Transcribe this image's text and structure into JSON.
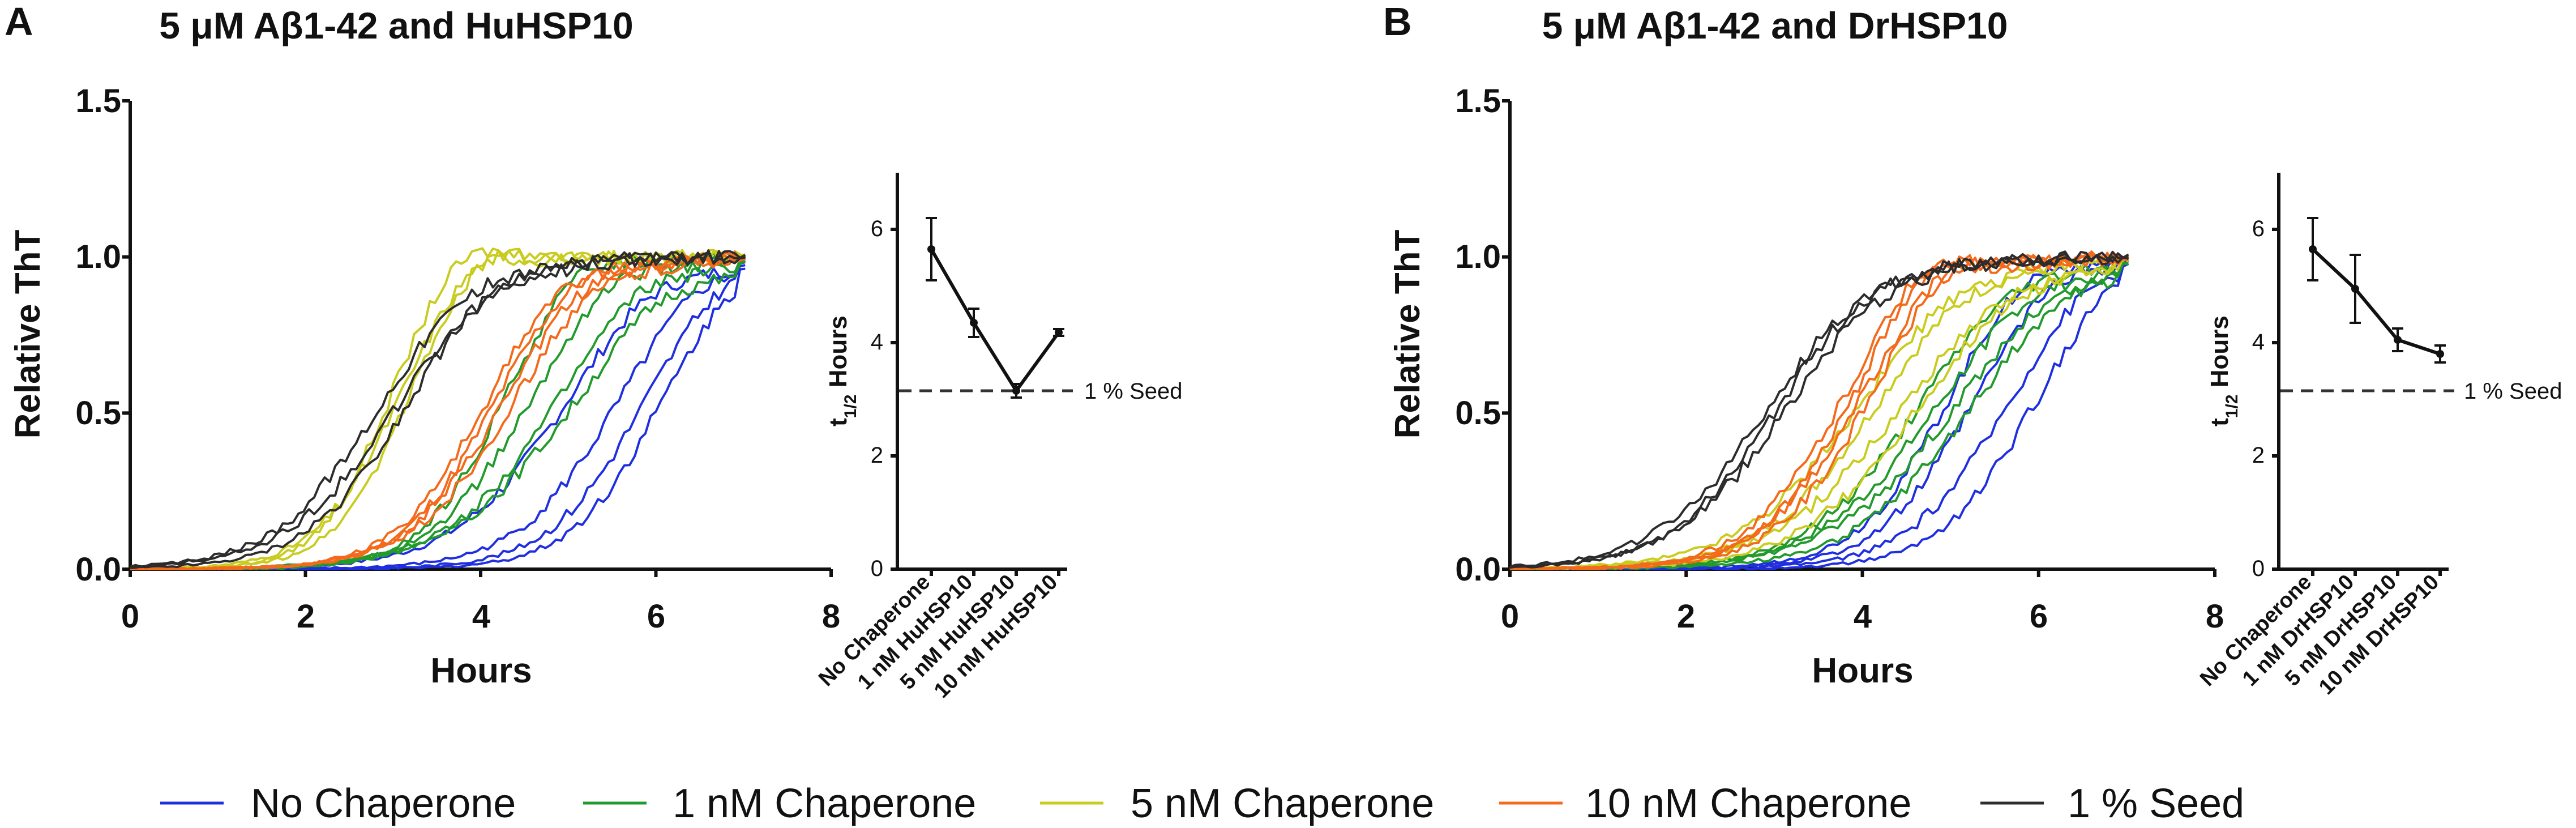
{
  "legend": [
    {
      "label": "No Chaperone",
      "color": "#1f2fe0"
    },
    {
      "label": "1 nM Chaperone",
      "color": "#229a2c"
    },
    {
      "label": "5 nM Chaperone",
      "color": "#c9cc1e"
    },
    {
      "label": "10 nM Chaperone",
      "color": "#f46a1c"
    },
    {
      "label": "1 % Seed",
      "color": "#2c2c2c"
    }
  ],
  "chart_data": [
    {
      "letter": "A",
      "type": "line",
      "title": "5 μM Aβ1-42 and HuHSP10",
      "xlabel": "Hours",
      "ylabel": "Relative ThT",
      "xlim": [
        0,
        8
      ],
      "ylim": [
        0,
        1.5
      ],
      "xticks": [
        "0",
        "2",
        "4",
        "6",
        "8"
      ],
      "yticks": [
        "0.0",
        "0.5",
        "1.0",
        "1.5"
      ],
      "groups": [
        {
          "name": "No Chaperone",
          "color": "#1f2fe0",
          "midpoints": [
            4.9,
            5.5,
            5.8,
            6.0
          ],
          "slopes": [
            1.6,
            1.8,
            1.9,
            2.0
          ],
          "overshoot": 1.04
        },
        {
          "name": "1 nM Chaperone",
          "color": "#229a2c",
          "midpoints": [
            4.2,
            4.5,
            4.8,
            5.0
          ],
          "slopes": [
            2.2,
            1.8,
            1.6,
            1.4
          ],
          "overshoot": 1.06
        },
        {
          "name": "5 nM Chaperone",
          "color": "#c9cc1e",
          "midpoints": [
            2.9,
            3.0,
            3.1
          ],
          "slopes": [
            2.6,
            2.2,
            2.4
          ],
          "overshoot": 1.08
        },
        {
          "name": "10 nM Chaperone",
          "color": "#f46a1c",
          "midpoints": [
            4.0,
            4.1,
            4.2,
            4.3
          ],
          "slopes": [
            2.0,
            2.0,
            1.9,
            1.8
          ],
          "overshoot": 1.03
        },
        {
          "name": "1 % Seed",
          "color": "#2c2c2c",
          "midpoints": [
            2.8,
            3.0,
            3.1
          ],
          "slopes": [
            1.7,
            1.6,
            1.8
          ],
          "overshoot": 1.02
        }
      ],
      "inset": {
        "type": "line",
        "ylabel": "t1/2 Hours",
        "ylim": [
          0,
          7
        ],
        "yticks": [
          "0",
          "2",
          "4",
          "6"
        ],
        "categories": [
          "No Chaperone",
          "1 nM HuHSP10",
          "5 nM HuHSP10",
          "10 nM HuHSP10"
        ],
        "values": [
          5.65,
          4.35,
          3.15,
          4.18
        ],
        "errors": [
          0.55,
          0.25,
          0.12,
          0.06
        ],
        "reference": {
          "label": "1 % Seed",
          "value": 3.15
        }
      }
    },
    {
      "letter": "B",
      "type": "line",
      "title": "5 μM Aβ1-42 and DrHSP10",
      "xlabel": "Hours",
      "ylabel": "Relative ThT",
      "xlim": [
        0,
        8
      ],
      "ylim": [
        0,
        1.5
      ],
      "xticks": [
        "0",
        "2",
        "4",
        "6",
        "8"
      ],
      "yticks": [
        "0.0",
        "0.5",
        "1.0",
        "1.5"
      ],
      "groups": [
        {
          "name": "No Chaperone",
          "color": "#1f2fe0",
          "midpoints": [
            4.9,
            5.2,
            5.6,
            5.9
          ],
          "slopes": [
            2.0,
            1.9,
            1.8,
            1.9
          ],
          "overshoot": 1.05
        },
        {
          "name": "1 nM Chaperone",
          "color": "#229a2c",
          "midpoints": [
            4.6,
            4.8,
            5.0,
            5.2
          ],
          "slopes": [
            1.6,
            1.5,
            1.4,
            1.5
          ],
          "overshoot": 1.03
        },
        {
          "name": "5 nM Chaperone",
          "color": "#c9cc1e",
          "midpoints": [
            3.9,
            4.1,
            4.4,
            4.6
          ],
          "slopes": [
            1.5,
            1.6,
            1.4,
            1.5
          ],
          "overshoot": 1.02
        },
        {
          "name": "10 nM Chaperone",
          "color": "#f46a1c",
          "midpoints": [
            3.7,
            3.8,
            3.9,
            4.0
          ],
          "slopes": [
            1.9,
            2.0,
            1.8,
            1.9
          ],
          "overshoot": 1.09
        },
        {
          "name": "1 % Seed",
          "color": "#2c2c2c",
          "midpoints": [
            2.9,
            3.0,
            3.1
          ],
          "slopes": [
            1.6,
            1.7,
            1.6
          ],
          "overshoot": 1.01
        }
      ],
      "inset": {
        "type": "line",
        "ylabel": "t1/2 Hours",
        "ylim": [
          0,
          7
        ],
        "yticks": [
          "0",
          "2",
          "4",
          "6"
        ],
        "categories": [
          "No Chaperone",
          "1 nM DrHSP10",
          "5 nM DrHSP10",
          "10 nM DrHSP10"
        ],
        "values": [
          5.65,
          4.95,
          4.05,
          3.8
        ],
        "errors": [
          0.55,
          0.6,
          0.2,
          0.15
        ],
        "reference": {
          "label": "1 % Seed",
          "value": 3.15
        }
      }
    }
  ]
}
